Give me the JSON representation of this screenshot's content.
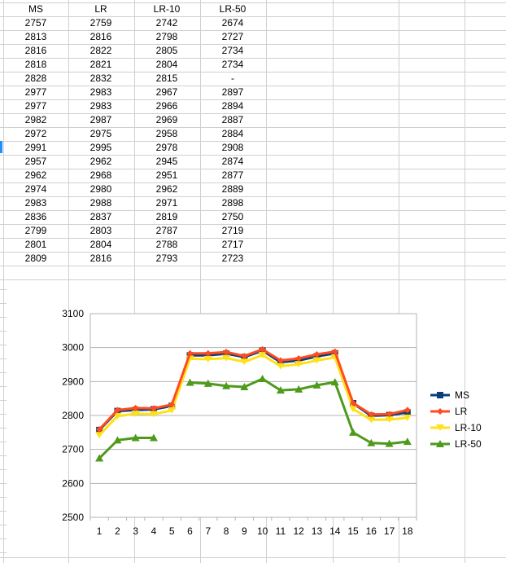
{
  "sheet": {
    "headers": [
      "MS",
      "LR",
      "LR-10",
      "LR-50"
    ],
    "rows": [
      [
        "2757",
        "2759",
        "2742",
        "2674"
      ],
      [
        "2813",
        "2816",
        "2798",
        "2727"
      ],
      [
        "2816",
        "2822",
        "2805",
        "2734"
      ],
      [
        "2818",
        "2821",
        "2804",
        "2734"
      ],
      [
        "2828",
        "2832",
        "2815",
        "-"
      ],
      [
        "2977",
        "2983",
        "2967",
        "2897"
      ],
      [
        "2977",
        "2983",
        "2966",
        "2894"
      ],
      [
        "2982",
        "2987",
        "2969",
        "2887"
      ],
      [
        "2972",
        "2975",
        "2958",
        "2884"
      ],
      [
        "2991",
        "2995",
        "2978",
        "2908"
      ],
      [
        "2957",
        "2962",
        "2945",
        "2874"
      ],
      [
        "2962",
        "2968",
        "2951",
        "2877"
      ],
      [
        "2974",
        "2980",
        "2962",
        "2889"
      ],
      [
        "2983",
        "2988",
        "2971",
        "2898"
      ],
      [
        "2836",
        "2837",
        "2819",
        "2750"
      ],
      [
        "2799",
        "2803",
        "2787",
        "2719"
      ],
      [
        "2801",
        "2804",
        "2788",
        "2717"
      ],
      [
        "2809",
        "2816",
        "2793",
        "2723"
      ]
    ]
  },
  "chart_data": {
    "type": "line",
    "categories": [
      "1",
      "2",
      "3",
      "4",
      "5",
      "6",
      "7",
      "8",
      "9",
      "10",
      "11",
      "12",
      "13",
      "14",
      "15",
      "16",
      "17",
      "18"
    ],
    "ylim": [
      2500,
      3100
    ],
    "yticks": [
      "2500",
      "2600",
      "2700",
      "2800",
      "2900",
      "3000",
      "3100"
    ],
    "grid": true,
    "legend": "right",
    "series": [
      {
        "name": "MS",
        "color": "#0b3f7a",
        "marker": "square",
        "values": [
          2757,
          2813,
          2816,
          2818,
          2828,
          2977,
          2977,
          2982,
          2972,
          2991,
          2957,
          2962,
          2974,
          2983,
          2836,
          2799,
          2801,
          2809
        ]
      },
      {
        "name": "LR",
        "color": "#ff4b1f",
        "marker": "diamond",
        "values": [
          2759,
          2816,
          2822,
          2821,
          2832,
          2983,
          2983,
          2987,
          2975,
          2995,
          2962,
          2968,
          2980,
          2988,
          2837,
          2803,
          2804,
          2816
        ]
      },
      {
        "name": "LR-10",
        "color": "#ffe11a",
        "marker": "triangle-down",
        "values": [
          2742,
          2798,
          2805,
          2804,
          2815,
          2967,
          2966,
          2969,
          2958,
          2978,
          2945,
          2951,
          2962,
          2971,
          2819,
          2787,
          2788,
          2793
        ]
      },
      {
        "name": "LR-50",
        "color": "#4e9a1b",
        "marker": "triangle-up",
        "values": [
          2674,
          2727,
          2734,
          2734,
          null,
          2897,
          2894,
          2887,
          2884,
          2908,
          2874,
          2877,
          2889,
          2898,
          2750,
          2719,
          2717,
          2723
        ]
      }
    ]
  }
}
